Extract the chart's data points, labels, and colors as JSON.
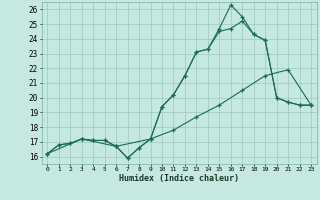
{
  "xlabel": "Humidex (Indice chaleur)",
  "xlim": [
    -0.5,
    23.5
  ],
  "ylim": [
    15.5,
    26.5
  ],
  "yticks": [
    16,
    17,
    18,
    19,
    20,
    21,
    22,
    23,
    24,
    25,
    26
  ],
  "xticks": [
    0,
    1,
    2,
    3,
    4,
    5,
    6,
    7,
    8,
    9,
    10,
    11,
    12,
    13,
    14,
    15,
    16,
    17,
    18,
    19,
    20,
    21,
    22,
    23
  ],
  "bg_color": "#c5e8e0",
  "grid_color": "#9fc8bf",
  "line_color": "#1a6b5a",
  "line1_x": [
    0,
    1,
    2,
    3,
    4,
    5,
    6,
    7,
    8,
    9,
    10,
    11,
    12,
    13,
    14,
    15,
    16,
    17,
    18,
    19,
    20,
    21,
    22,
    23
  ],
  "line1_y": [
    16.2,
    16.8,
    16.9,
    17.2,
    17.1,
    17.1,
    16.7,
    15.9,
    16.6,
    17.2,
    19.4,
    20.2,
    21.5,
    23.1,
    23.3,
    24.7,
    26.3,
    25.5,
    24.3,
    23.9,
    20.0,
    19.7,
    19.5,
    19.5
  ],
  "line2_x": [
    0,
    1,
    2,
    3,
    4,
    5,
    6,
    7,
    8,
    9,
    10,
    11,
    12,
    13,
    14,
    15,
    16,
    17,
    18,
    19,
    20,
    21,
    22,
    23
  ],
  "line2_y": [
    16.2,
    16.8,
    16.9,
    17.2,
    17.1,
    17.1,
    16.7,
    15.9,
    16.6,
    17.2,
    19.4,
    20.2,
    21.5,
    23.1,
    23.3,
    24.5,
    24.7,
    25.2,
    24.3,
    23.9,
    20.0,
    19.7,
    19.5,
    19.5
  ],
  "line3_x": [
    0,
    3,
    6,
    9,
    11,
    13,
    15,
    17,
    19,
    21,
    23
  ],
  "line3_y": [
    16.2,
    17.2,
    16.7,
    17.2,
    17.8,
    18.7,
    19.5,
    20.5,
    21.5,
    21.9,
    19.5
  ]
}
